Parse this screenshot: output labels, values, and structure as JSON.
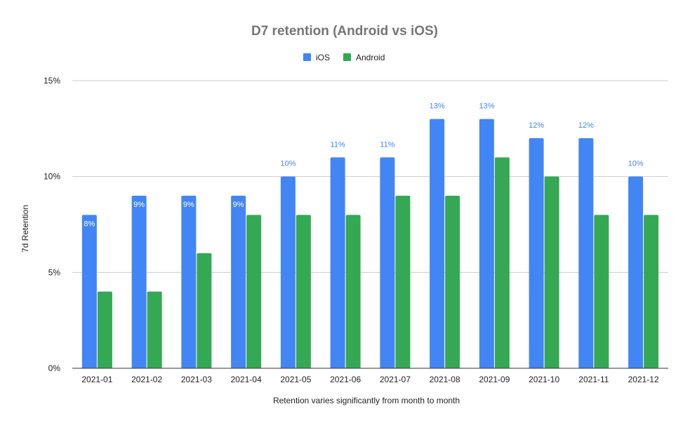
{
  "chart_data": {
    "type": "bar",
    "title": "D7 retention (Android vs iOS)",
    "xlabel": "Retention varies significantly from month to month",
    "ylabel": "7d Retention",
    "ylim": [
      0,
      15
    ],
    "y_ticks": [
      0,
      5,
      10,
      15
    ],
    "y_tick_labels": [
      "0%",
      "5%",
      "10%",
      "15%"
    ],
    "grid": true,
    "legend_position": "top",
    "categories": [
      "2021-01",
      "2021-02",
      "2021-03",
      "2021-04",
      "2021-05",
      "2021-06",
      "2021-07",
      "2021-08",
      "2021-09",
      "2021-10",
      "2021-11",
      "2021-12"
    ],
    "series": [
      {
        "name": "iOS",
        "color": "#4285f4",
        "values": [
          8,
          9,
          9,
          9,
          10,
          11,
          11,
          13,
          13,
          12,
          12,
          10
        ],
        "data_labels": [
          "8%",
          "9%",
          "9%",
          "9%",
          "10%",
          "11%",
          "11%",
          "13%",
          "13%",
          "12%",
          "12%",
          "10%"
        ]
      },
      {
        "name": "Android",
        "color": "#34a853",
        "values": [
          4,
          4,
          6,
          8,
          8,
          8,
          9,
          9,
          11,
          10,
          8,
          8
        ]
      }
    ]
  }
}
